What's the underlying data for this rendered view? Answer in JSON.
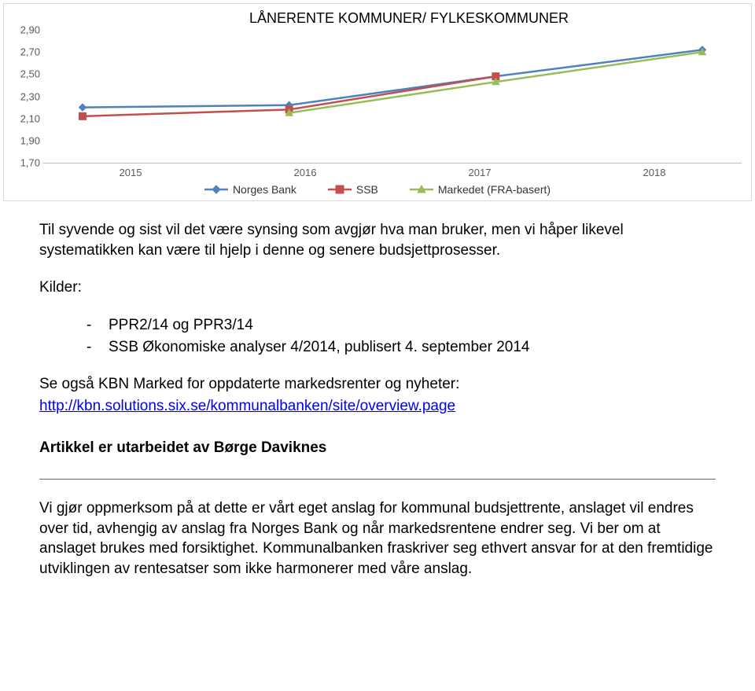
{
  "chart": {
    "title": "LÅNERENTE KOMMUNER/ FYLKESKOMMUNER",
    "type": "line",
    "title_fontsize": 18,
    "label_fontsize": 13,
    "ylim": [
      1.7,
      2.9
    ],
    "ytick_step": 0.2,
    "yticks": [
      "1,70",
      "1,90",
      "2,10",
      "2,30",
      "2,50",
      "2,70",
      "2,90"
    ],
    "xcategories": [
      "2015",
      "2016",
      "2017",
      "2018"
    ],
    "background_color": "#ffffff",
    "grid_color": "#d9d9d9",
    "axis_color": "#bfbfbf",
    "series": [
      {
        "name": "Norges Bank",
        "color": "#4f81bd",
        "marker": "diamond",
        "values": [
          2.2,
          2.22,
          2.48,
          2.72
        ]
      },
      {
        "name": "SSB",
        "color": "#c0504d",
        "marker": "square",
        "values": [
          2.12,
          2.18,
          2.48,
          null
        ]
      },
      {
        "name": "Markedet (FRA-basert)",
        "color": "#9bbb59",
        "marker": "triangle",
        "values": [
          null,
          2.15,
          2.43,
          2.7
        ]
      }
    ],
    "line_width": 2.5,
    "marker_size": 9
  },
  "article": {
    "p1": "Til syvende og sist vil det være synsing som avgjør hva man bruker, men vi håper likevel systematikken kan være til hjelp i denne og senere budsjettprosesser.",
    "kilder_label": "Kilder:",
    "sources": [
      "PPR2/14 og PPR3/14",
      "SSB Økonomiske analyser 4/2014, publisert 4. september 2014"
    ],
    "see_also": "Se også KBN Marked for oppdaterte markedsrenter og nyheter:",
    "link_text": "http://kbn.solutions.six.se/kommunalbanken/site/overview.page",
    "author_prefix": "Artikkel er utarbeidet av ",
    "author_name": "Børge Daviknes",
    "disclaimer": "Vi gjør oppmerksom på at dette er vårt eget anslag for kommunal budsjettrente, anslaget vil endres over tid, avhengig av anslag fra Norges Bank og når markedsrentene endrer seg. Vi ber om at anslaget brukes med forsiktighet. Kommunalbanken fraskriver seg ethvert ansvar for at den fremtidige utviklingen av rentesatser som ikke harmonerer med våre anslag."
  }
}
